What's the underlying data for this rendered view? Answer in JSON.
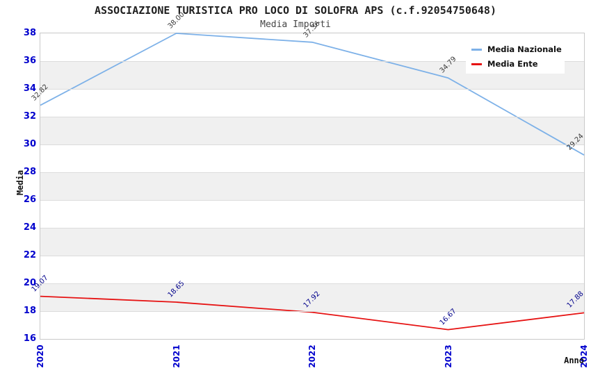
{
  "header": {
    "title": "ASSOCIAZIONE TURISTICA PRO LOCO DI SOLOFRA APS (c.f.92054750648)",
    "subtitle": "Media Importi"
  },
  "chart_data": {
    "type": "line",
    "title": "ASSOCIAZIONE TURISTICA PRO LOCO DI SOLOFRA APS (c.f.92054750648)",
    "subtitle": "Media Importi",
    "xlabel": "Anno",
    "ylabel": "Media",
    "categories": [
      "2020",
      "2021",
      "2022",
      "2023",
      "2024"
    ],
    "series": [
      {
        "name": "Media Nazionale",
        "color": "#7db1e8",
        "label_color": "#3a3a3a",
        "values": [
          32.82,
          38.0,
          37.36,
          34.79,
          29.24
        ],
        "labels": [
          "32.82",
          "38.00",
          "37.36",
          "34.79",
          "29.24"
        ]
      },
      {
        "name": "Media Ente",
        "color": "#e61212",
        "label_color": "#00008b",
        "values": [
          19.07,
          18.65,
          17.92,
          16.67,
          17.88
        ],
        "labels": [
          "19.07",
          "18.65",
          "17.92",
          "16.67",
          "17.88"
        ]
      }
    ],
    "ylim": [
      16,
      38
    ],
    "yticks": [
      38,
      36,
      34,
      32,
      30,
      28,
      26,
      24,
      22,
      20,
      18,
      16
    ],
    "tick_color": "#0000cd",
    "band_colors": [
      "#ffffff",
      "#f0f0f0"
    ],
    "grid": "horizontal-bands",
    "legend_position": "top-right"
  }
}
